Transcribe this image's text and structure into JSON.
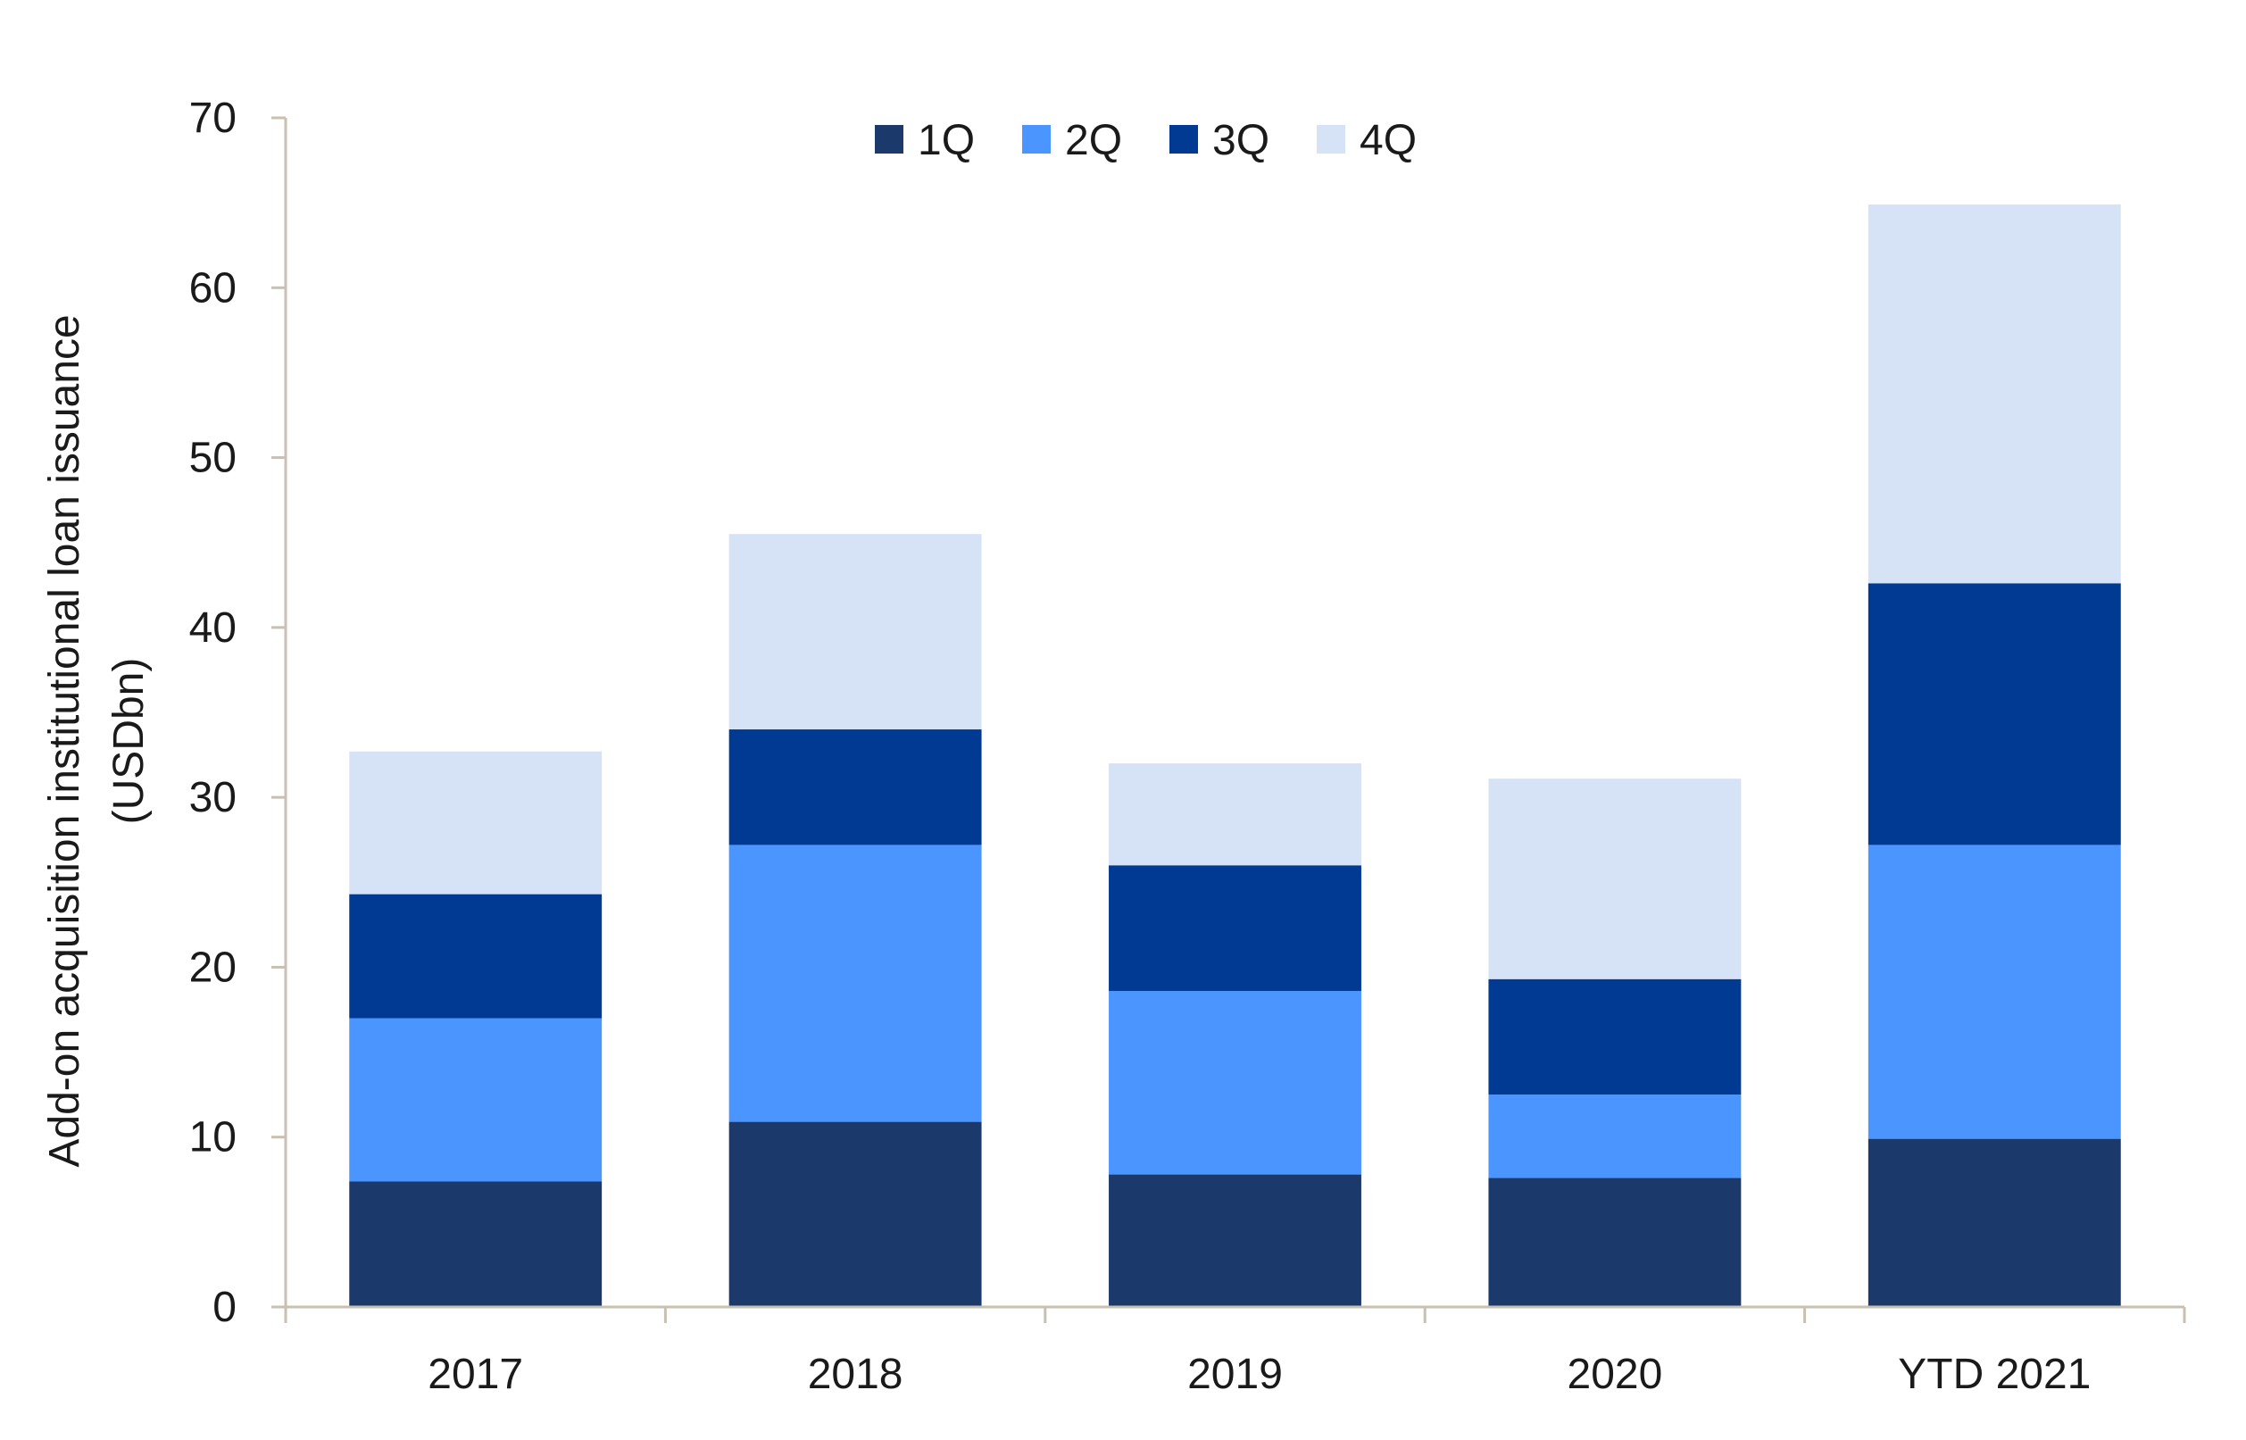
{
  "chart_data": {
    "type": "bar",
    "stacked": true,
    "title": "",
    "ylabel_lines": [
      "Add-on acquisition institutional loan issuance",
      "(USDbn)"
    ],
    "xlabel": "",
    "categories": [
      "2017",
      "2018",
      "2019",
      "2020",
      "YTD 2021"
    ],
    "ylim": [
      0,
      70
    ],
    "yticks": [
      0,
      10,
      20,
      30,
      40,
      50,
      60,
      70
    ],
    "grid": false,
    "legend_position": "top-center",
    "series": [
      {
        "name": "1Q",
        "color": "#1b3a6b",
        "values": [
          7.4,
          10.9,
          7.8,
          7.6,
          9.9
        ]
      },
      {
        "name": "2Q",
        "color": "#4a95ff",
        "values": [
          9.6,
          16.3,
          10.8,
          4.9,
          17.3
        ]
      },
      {
        "name": "3Q",
        "color": "#003a93",
        "values": [
          7.3,
          6.8,
          7.4,
          6.8,
          15.4
        ]
      },
      {
        "name": "4Q",
        "color": "#d6e2f5",
        "values": [
          8.4,
          11.5,
          6.0,
          11.8,
          22.3
        ]
      }
    ],
    "axis_color": "#c8c0b0"
  }
}
